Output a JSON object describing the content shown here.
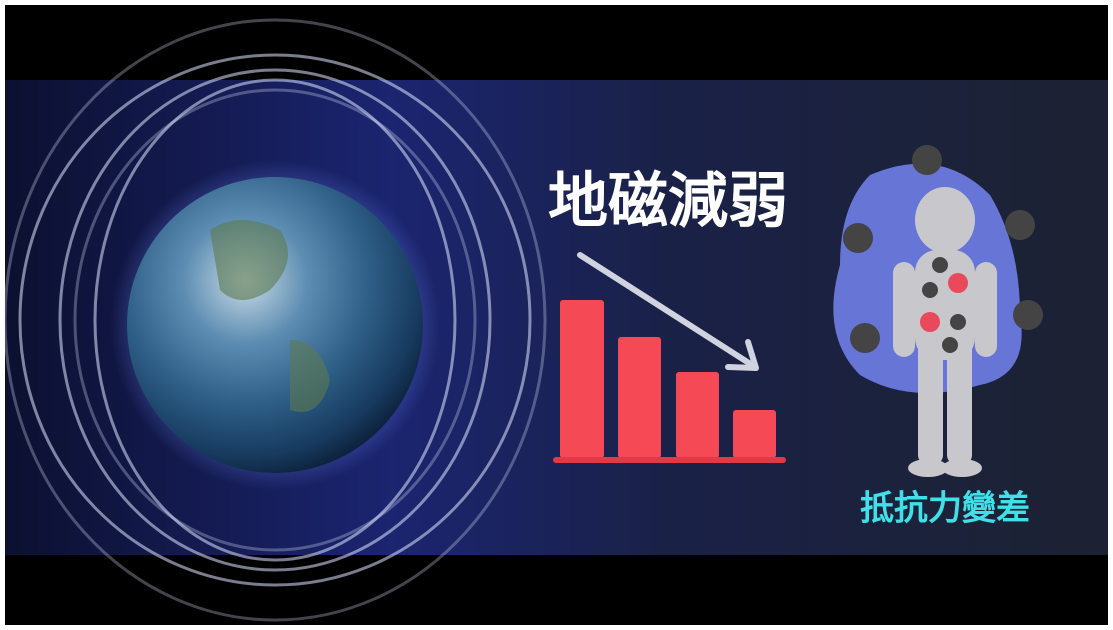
{
  "headline": "地磁減弱",
  "caption": "抵抗力變差"
}
